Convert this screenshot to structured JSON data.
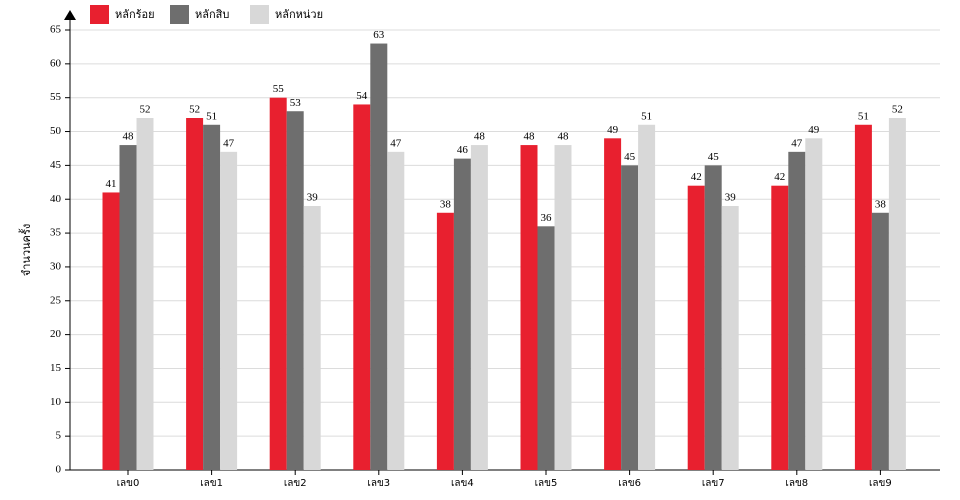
{
  "chart_data": {
    "type": "bar",
    "y_label": "จำนวนครั้ง",
    "categories": [
      "เลข0",
      "เลข1",
      "เลข2",
      "เลข3",
      "เลข4",
      "เลข5",
      "เลข6",
      "เลข7",
      "เลข8",
      "เลข9"
    ],
    "series": [
      {
        "name": "หลักร้อย",
        "color": "#e8202f",
        "values": [
          41,
          52,
          55,
          54,
          38,
          48,
          49,
          42,
          42,
          51
        ]
      },
      {
        "name": "หลักสิบ",
        "color": "#6e6e6e",
        "values": [
          48,
          51,
          53,
          63,
          46,
          36,
          45,
          45,
          47,
          38
        ]
      },
      {
        "name": "หลักหน่วย",
        "color": "#d8d8d8",
        "values": [
          52,
          47,
          39,
          47,
          48,
          48,
          51,
          39,
          49,
          52
        ]
      }
    ],
    "ylim": [
      0,
      65
    ],
    "yticks": [
      0,
      5,
      10,
      15,
      20,
      25,
      30,
      35,
      40,
      45,
      50,
      55,
      60,
      65
    ],
    "grid": true
  }
}
